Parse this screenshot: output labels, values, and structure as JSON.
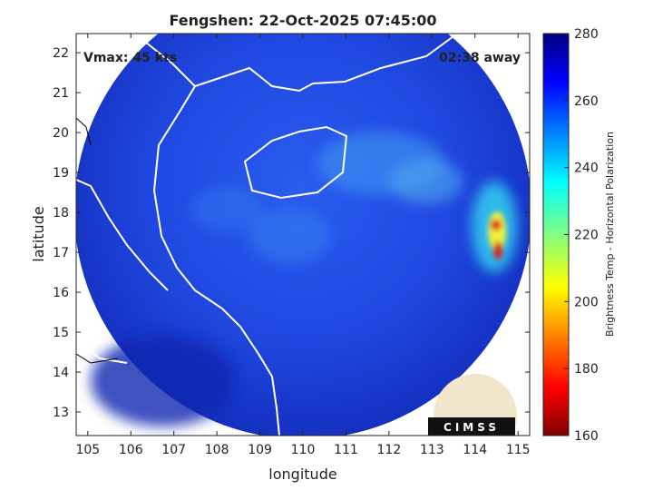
{
  "chart_data": {
    "type": "map",
    "title": "Fengshen: 22-Oct-2025 07:45:00",
    "xlabel": "longitude",
    "ylabel": "latitude",
    "xlim": [
      104.73,
      115.27
    ],
    "ylim": [
      12.41,
      22.48
    ],
    "xticks": [
      105,
      106,
      107,
      108,
      109,
      110,
      111,
      112,
      113,
      114,
      115
    ],
    "yticks": [
      13,
      14,
      15,
      16,
      17,
      18,
      19,
      20,
      21,
      22
    ],
    "annotations": [
      "Vmax: 45 kts",
      "02:38 away"
    ],
    "logo": "CIMSS",
    "colorbar": {
      "label": "Brightness Temp - Horizontal Polarization",
      "clim": [
        160,
        280
      ],
      "ticks": [
        160,
        180,
        200,
        220,
        240,
        260,
        280
      ]
    }
  }
}
